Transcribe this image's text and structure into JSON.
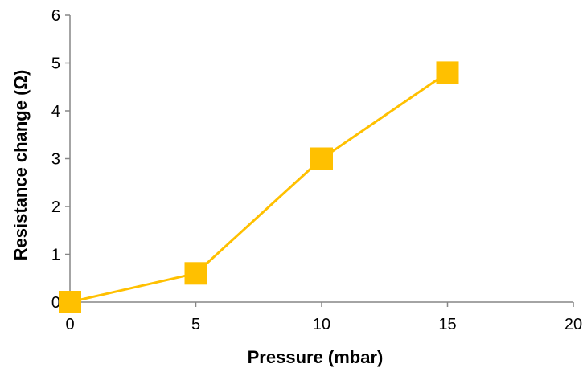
{
  "chart_data": {
    "type": "line",
    "xlabel": "Pressure (mbar)",
    "ylabel": "Resistance change (Ω)",
    "xlim": [
      0,
      20
    ],
    "ylim": [
      0,
      6
    ],
    "xticks": [
      0,
      5,
      10,
      15,
      20
    ],
    "yticks": [
      0,
      1,
      2,
      3,
      4,
      5,
      6
    ],
    "grid": false,
    "series": [
      {
        "x": [
          0,
          5,
          10,
          15
        ],
        "y": [
          0,
          0.6,
          3.0,
          4.8
        ],
        "color": "#FFC000",
        "marker": "square"
      }
    ]
  }
}
